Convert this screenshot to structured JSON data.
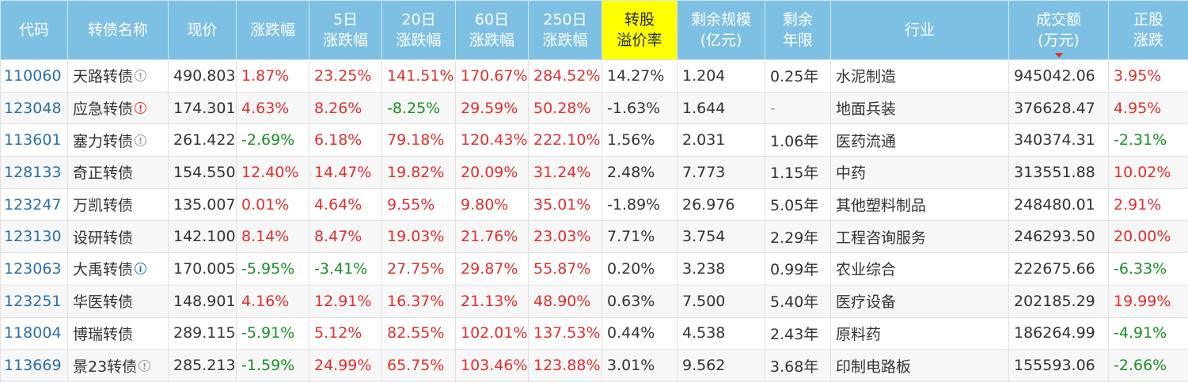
{
  "headers": [
    "代码",
    "转债名称",
    "现价",
    "涨跌幅",
    "5日\n涨跌幅",
    "20日\n涨跌幅",
    "60日\n涨跌幅",
    "250日\n涨跌幅",
    "转股\n溢价率",
    "剩余规模\n(亿元)",
    "剩余\n年限",
    "行业",
    "成交额\n(万元)",
    "正股\n涨跌"
  ],
  "colors": {
    "header_bg": "#7ec0e4",
    "highlight": "#ffff00",
    "up": "#e0302f",
    "down": "#1a8f28",
    "code": "#2a6fa8",
    "sort_arrow": "#e0302f"
  },
  "rows": [
    {
      "code": "110060",
      "name": "天路转债",
      "icon": "info-gray",
      "price": "490.803",
      "chg": "1.87%",
      "chg5": "23.25%",
      "chg20": "141.51%",
      "chg60": "170.67%",
      "chg250": "284.52%",
      "premium": "14.27%",
      "size": "1.204",
      "years": "0.25年",
      "industry": "水泥制造",
      "volume": "945042.06",
      "stock_chg": "3.95%"
    },
    {
      "code": "123048",
      "name": "应急转债",
      "icon": "alert-red",
      "price": "174.301",
      "chg": "4.63%",
      "chg5": "8.26%",
      "chg20": "-8.25%",
      "chg60": "29.59%",
      "chg250": "50.28%",
      "premium": "-1.63%",
      "size": "1.644",
      "years": "-",
      "industry": "地面兵装",
      "volume": "376628.47",
      "stock_chg": "4.95%"
    },
    {
      "code": "113601",
      "name": "塞力转债",
      "icon": "info-gray",
      "price": "261.422",
      "chg": "-2.69%",
      "chg5": "6.18%",
      "chg20": "79.18%",
      "chg60": "120.43%",
      "chg250": "222.10%",
      "premium": "1.56%",
      "size": "2.031",
      "years": "1.06年",
      "industry": "医药流通",
      "volume": "340374.31",
      "stock_chg": "-2.31%"
    },
    {
      "code": "128133",
      "name": "奇正转债",
      "icon": "",
      "price": "154.550",
      "chg": "12.40%",
      "chg5": "14.47%",
      "chg20": "19.82%",
      "chg60": "20.09%",
      "chg250": "31.24%",
      "premium": "2.48%",
      "size": "7.773",
      "years": "1.15年",
      "industry": "中药",
      "volume": "313551.88",
      "stock_chg": "10.02%"
    },
    {
      "code": "123247",
      "name": "万凯转债",
      "icon": "",
      "price": "135.007",
      "chg": "0.01%",
      "chg5": "4.64%",
      "chg20": "9.55%",
      "chg60": "9.80%",
      "chg250": "35.01%",
      "premium": "-1.89%",
      "size": "26.976",
      "years": "5.05年",
      "industry": "其他塑料制品",
      "volume": "248480.01",
      "stock_chg": "2.91%"
    },
    {
      "code": "123130",
      "name": "设研转债",
      "icon": "",
      "price": "142.100",
      "chg": "8.14%",
      "chg5": "8.47%",
      "chg20": "19.03%",
      "chg60": "21.76%",
      "chg250": "23.03%",
      "premium": "7.71%",
      "size": "3.754",
      "years": "2.29年",
      "industry": "工程咨询服务",
      "volume": "246293.50",
      "stock_chg": "20.00%"
    },
    {
      "code": "123063",
      "name": "大禹转债",
      "icon": "info-blue",
      "price": "170.005",
      "chg": "-5.95%",
      "chg5": "-3.41%",
      "chg20": "27.75%",
      "chg60": "29.87%",
      "chg250": "55.87%",
      "premium": "0.20%",
      "size": "3.238",
      "years": "0.99年",
      "industry": "农业综合",
      "volume": "222675.66",
      "stock_chg": "-6.33%"
    },
    {
      "code": "123251",
      "name": "华医转债",
      "icon": "",
      "price": "148.901",
      "chg": "4.16%",
      "chg5": "12.91%",
      "chg20": "16.37%",
      "chg60": "21.13%",
      "chg250": "48.90%",
      "premium": "0.63%",
      "size": "7.500",
      "years": "5.40年",
      "industry": "医疗设备",
      "volume": "202185.29",
      "stock_chg": "19.99%"
    },
    {
      "code": "118004",
      "name": "博瑞转债",
      "icon": "",
      "price": "289.115",
      "chg": "-5.91%",
      "chg5": "5.12%",
      "chg20": "82.55%",
      "chg60": "102.01%",
      "chg250": "137.53%",
      "premium": "0.44%",
      "size": "4.538",
      "years": "2.43年",
      "industry": "原料药",
      "volume": "186264.99",
      "stock_chg": "-4.91%"
    },
    {
      "code": "113669",
      "name": "景23转债",
      "icon": "info-gray",
      "price": "285.213",
      "chg": "-1.59%",
      "chg5": "24.99%",
      "chg20": "65.75%",
      "chg60": "103.46%",
      "chg250": "123.88%",
      "premium": "3.01%",
      "size": "9.562",
      "years": "3.68年",
      "industry": "印制电路板",
      "volume": "155593.06",
      "stock_chg": "-2.66%"
    }
  ]
}
